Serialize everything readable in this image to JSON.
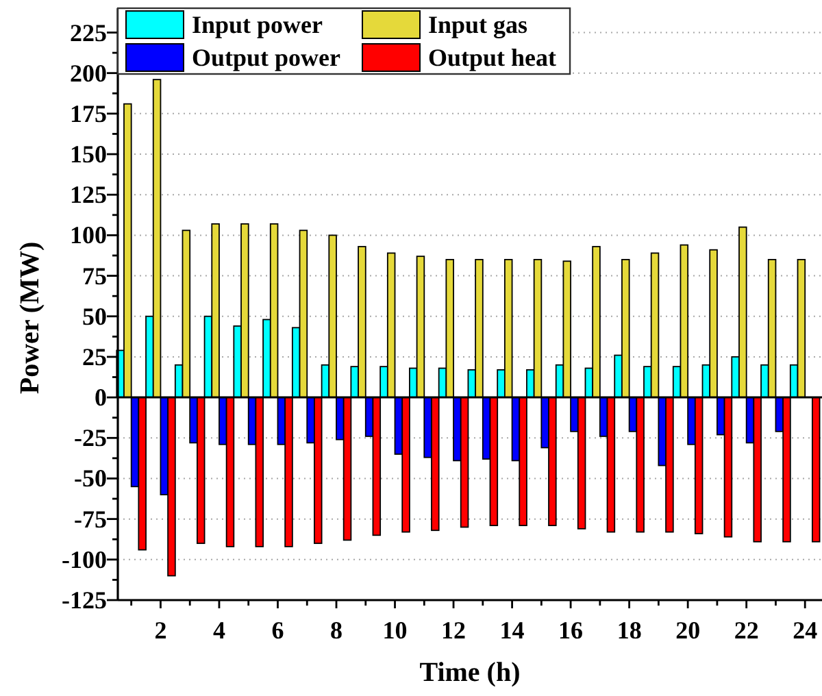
{
  "chart_data": {
    "type": "bar",
    "xlabel": "Time (h)",
    "ylabel": "Power (MW)",
    "x": [
      1,
      2,
      3,
      4,
      5,
      6,
      7,
      8,
      9,
      10,
      11,
      12,
      13,
      14,
      15,
      16,
      17,
      18,
      19,
      20,
      21,
      22,
      23,
      24
    ],
    "series": [
      {
        "name": "Input power",
        "color": "#00ffff",
        "values": [
          29,
          50,
          20,
          50,
          44,
          48,
          43,
          20,
          19,
          19,
          18,
          18,
          17,
          17,
          17,
          20,
          18,
          26,
          19,
          19,
          20,
          25,
          20,
          20
        ]
      },
      {
        "name": "Input gas",
        "color": "#e5d93a",
        "values": [
          181,
          196,
          103,
          107,
          107,
          107,
          103,
          100,
          93,
          89,
          87,
          85,
          85,
          85,
          85,
          84,
          93,
          85,
          89,
          94,
          91,
          105,
          85,
          85
        ]
      },
      {
        "name": "Output power",
        "color": "#0000ff",
        "values": [
          -55,
          -60,
          -28,
          -29,
          -29,
          -29,
          -28,
          -26,
          -24,
          -35,
          -37,
          -39,
          -38,
          -39,
          -31,
          -21,
          -24,
          -21,
          -42,
          -29,
          -23,
          -28,
          -21,
          0
        ]
      },
      {
        "name": "Output heat",
        "color": "#ff0000",
        "values": [
          -94,
          -110,
          -90,
          -92,
          -92,
          -92,
          -90,
          -88,
          -85,
          -83,
          -82,
          -80,
          -79,
          -79,
          -79,
          -81,
          -83,
          -83,
          -83,
          -84,
          -86,
          -89,
          -89,
          -89
        ]
      }
    ],
    "xlim": [
      0.54,
      24.58
    ],
    "xticks": [
      {
        "value": 1,
        "label": null
      },
      2,
      {
        "value": 3,
        "label": null
      },
      4,
      {
        "value": 5,
        "label": null
      },
      6,
      {
        "value": 7,
        "label": null
      },
      8,
      {
        "value": 9,
        "label": null
      },
      10,
      {
        "value": 11,
        "label": null
      },
      12,
      {
        "value": 13,
        "label": null
      },
      14,
      {
        "value": 15,
        "label": null
      },
      16,
      {
        "value": 17,
        "label": null
      },
      18,
      {
        "value": 19,
        "label": null
      },
      20,
      {
        "value": 21,
        "label": null
      },
      22,
      {
        "value": 23,
        "label": null
      },
      24
    ],
    "ylim": [
      -125,
      240
    ],
    "yticks": [
      -125,
      {
        "value": -112.5,
        "label": null
      },
      -100,
      {
        "value": -87.5,
        "label": null
      },
      -75,
      {
        "value": -62.5,
        "label": null
      },
      -50,
      {
        "value": -37.5,
        "label": null
      },
      -25,
      {
        "value": -12.5,
        "label": null
      },
      0,
      {
        "value": 12.5,
        "label": null
      },
      25,
      {
        "value": 37.5,
        "label": null
      },
      50,
      {
        "value": 62.5,
        "label": null
      },
      75,
      {
        "value": 87.5,
        "label": null
      },
      100,
      {
        "value": 112.5,
        "label": null
      },
      125,
      {
        "value": 137.5,
        "label": null
      },
      150,
      {
        "value": 162.5,
        "label": null
      },
      175,
      {
        "value": 187.5,
        "label": null
      },
      200,
      {
        "value": 212.5,
        "label": null
      },
      225
    ],
    "grid": "y",
    "legend": "top left",
    "ref_lines": [
      {
        "axis": "y",
        "value": 0,
        "color": "#000000"
      }
    ]
  }
}
